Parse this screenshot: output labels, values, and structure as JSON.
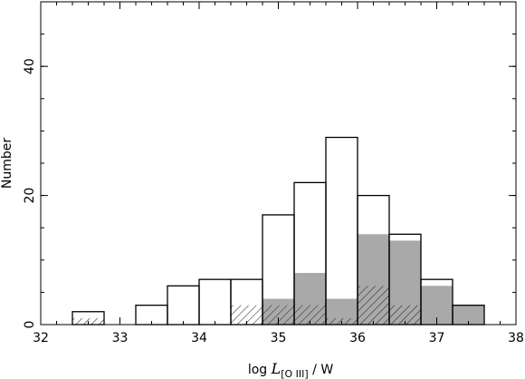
{
  "chart_data": {
    "type": "bar",
    "xlabel_prefix": "log ",
    "xlabel_symbol": "L",
    "xlabel_subscript": "[O III]",
    "xlabel_suffix": " / W",
    "ylabel": "Number",
    "xlim": [
      32,
      38
    ],
    "ylim": [
      0,
      50
    ],
    "x_ticks": [
      32,
      33,
      34,
      35,
      36,
      37,
      38
    ],
    "y_ticks": [
      0,
      20,
      40
    ],
    "bin_width": 0.4,
    "series": [
      {
        "style": "outline",
        "bins": [
          {
            "x0": 32.4,
            "x1": 32.8,
            "count": 2
          },
          {
            "x0": 33.2,
            "x1": 33.6,
            "count": 3
          },
          {
            "x0": 33.6,
            "x1": 34.0,
            "count": 6
          },
          {
            "x0": 34.0,
            "x1": 34.4,
            "count": 7
          },
          {
            "x0": 34.4,
            "x1": 34.8,
            "count": 7
          },
          {
            "x0": 34.8,
            "x1": 35.2,
            "count": 17
          },
          {
            "x0": 35.2,
            "x1": 35.6,
            "count": 22
          },
          {
            "x0": 35.6,
            "x1": 36.0,
            "count": 29
          },
          {
            "x0": 36.0,
            "x1": 36.4,
            "count": 20
          },
          {
            "x0": 36.4,
            "x1": 36.8,
            "count": 14
          },
          {
            "x0": 36.8,
            "x1": 37.2,
            "count": 7
          },
          {
            "x0": 37.2,
            "x1": 37.6,
            "count": 3
          }
        ]
      },
      {
        "style": "filled-gray",
        "bins": [
          {
            "x0": 34.8,
            "x1": 35.2,
            "count": 4
          },
          {
            "x0": 35.2,
            "x1": 35.6,
            "count": 8
          },
          {
            "x0": 35.6,
            "x1": 36.0,
            "count": 4
          },
          {
            "x0": 36.0,
            "x1": 36.4,
            "count": 14
          },
          {
            "x0": 36.4,
            "x1": 36.8,
            "count": 13
          },
          {
            "x0": 36.8,
            "x1": 37.2,
            "count": 6
          },
          {
            "x0": 37.2,
            "x1": 37.6,
            "count": 3
          }
        ]
      },
      {
        "style": "hatched",
        "bins": [
          {
            "x0": 32.4,
            "x1": 32.8,
            "count": 1
          },
          {
            "x0": 34.4,
            "x1": 34.8,
            "count": 3
          },
          {
            "x0": 34.8,
            "x1": 35.2,
            "count": 3
          },
          {
            "x0": 35.2,
            "x1": 35.6,
            "count": 3
          },
          {
            "x0": 35.6,
            "x1": 36.0,
            "count": 1
          },
          {
            "x0": 36.0,
            "x1": 36.4,
            "count": 6
          },
          {
            "x0": 36.4,
            "x1": 36.8,
            "count": 3
          }
        ]
      }
    ],
    "colors": {
      "outline": "#000000",
      "gray_fill": "#a9a9a9",
      "hatch": "#333333"
    }
  }
}
